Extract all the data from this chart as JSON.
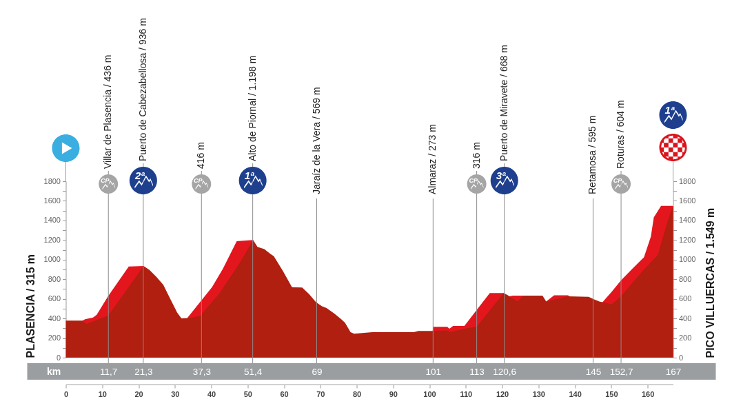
{
  "chart_data": {
    "type": "area",
    "ylabel": "PLASENCIA / 315 m",
    "y2label": "PICO VILLUERCAS / 1.549 m",
    "x2label": "km",
    "xlim": [
      0,
      167
    ],
    "xticks": [
      0,
      10,
      20,
      30,
      40,
      50,
      60,
      70,
      80,
      90,
      100,
      110,
      120,
      130,
      140,
      150,
      160
    ],
    "x2lim": [
      0,
      167
    ],
    "x2ticks": [
      {
        "value": 11.7,
        "label": "11,7"
      },
      {
        "value": 21.3,
        "label": "21,3"
      },
      {
        "value": 37.3,
        "label": "37,3"
      },
      {
        "value": 51.4,
        "label": "51,4"
      },
      69,
      101,
      113,
      {
        "value": 120.6,
        "label": "120,6"
      },
      145,
      {
        "value": 152.7,
        "label": "152,7"
      },
      167
    ],
    "ylim": [
      0,
      1800
    ],
    "yticks": [
      0,
      {
        "value": 100,
        "label": null
      },
      200,
      {
        "value": 300,
        "label": null
      },
      400,
      {
        "value": 500,
        "label": null
      },
      600,
      {
        "value": 700,
        "label": null
      },
      800,
      {
        "value": 900,
        "label": null
      },
      1000,
      {
        "value": 1100,
        "label": null
      },
      1200,
      {
        "value": 1300,
        "label": null
      },
      1400,
      {
        "value": 1500,
        "label": null
      },
      1600,
      {
        "value": 1700,
        "label": null
      },
      1800
    ],
    "y2lim": [
      0,
      1800
    ],
    "y2ticks": [
      0,
      {
        "value": 100,
        "label": null
      },
      200,
      {
        "value": 300,
        "label": null
      },
      400,
      {
        "value": 500,
        "label": null
      },
      600,
      {
        "value": 700,
        "label": null
      },
      800,
      {
        "value": 900,
        "label": null
      },
      1000,
      {
        "value": 1100,
        "label": null
      },
      1200,
      {
        "value": 1300,
        "label": null
      },
      1400,
      {
        "value": 1500,
        "label": null
      },
      1600,
      {
        "value": 1700,
        "label": null
      },
      1800
    ],
    "series": [
      {
        "color": "#e3161e",
        "x": [
          4.6,
          5.3,
          7.5,
          8.5,
          11.6,
          17.3,
          21.4,
          27,
          31.8,
          33.4,
          35.6,
          40.2,
          43.2,
          47,
          51.5,
          80,
          100.9,
          101,
          104.9,
          105.5,
          106.5,
          109.6,
          113.4,
          116.6,
          120.4,
          122,
          122.9,
          125.8,
          128.5,
          132.1,
          134.3,
          138.1,
          138.7,
          142,
          147.6,
          150.1,
          152.7,
          155.8,
          159,
          160.9,
          161.7,
          163.7,
          167
        ],
        "values": [
          378,
          392,
          410,
          437,
          625,
          930,
          935,
          null,
          401,
          405,
          507,
          719,
          907,
          1189,
          1200,
          null,
          272,
          314,
          314,
          296,
          324,
          324,
          507,
          660,
          660,
          625,
          632,
          632,
          null,
          573,
          637,
          637,
          621,
          null,
          566,
          672,
          790,
          907,
          1025,
          1236,
          1430,
          1549,
          1549
        ]
      },
      {
        "color": "#b01f0f",
        "x": [
          0,
          4.6,
          5,
          5.6,
          11.7,
          21.4,
          23,
          24.9,
          26.8,
          28.7,
          30.6,
          31.8,
          33.4,
          36.9,
          42.1,
          47.8,
          51.5,
          52.7,
          54.6,
          56.2,
          57.2,
          59.7,
          62.2,
          65,
          66.9,
          68.8,
          70.4,
          71.7,
          73.9,
          75.8,
          76.8,
          78.3,
          79.3,
          84.3,
          95.7,
          97,
          100.9,
          104.9,
          105.8,
          109.6,
          113,
          120.4,
          122,
          124.2,
          125.8,
          131.1,
          132.1,
          138.1,
          143.8,
          145.1,
          146.7,
          147.6,
          150.1,
          152.7,
          156.4,
          159.5,
          162.8,
          165.6,
          167
        ],
        "values": [
          378,
          378,
          366,
          343,
          430,
          935,
          895,
          825,
          743,
          602,
          461,
          401,
          401,
          425,
          648,
          965,
          1200,
          1131,
          1107,
          1060,
          1036,
          884,
          719,
          715,
          648,
          566,
          526,
          507,
          448,
          390,
          355,
          260,
          244,
          260,
          260,
          272,
          272,
          278,
          260,
          296,
          316,
          660,
          625,
          573,
          632,
          632,
          573,
          625,
          621,
          597,
          573,
          566,
          543,
          625,
          790,
          919,
          1048,
          1405,
          1549
        ]
      }
    ],
    "ref_lines": [
      {
        "axis": "x",
        "value": 11.7,
        "label": "Villar de Plasencia / 436 m",
        "color": "#8c8c8c"
      },
      {
        "axis": "x",
        "value": 21.3,
        "label": "Puerto de Cabezabellosa / 936 m",
        "color": "#8c8c8c"
      },
      {
        "axis": "x",
        "value": 37.3,
        "label": "416 m",
        "color": "#8c8c8c"
      },
      {
        "axis": "x",
        "value": 51.4,
        "label": "Alto de Piornal / 1.198 m",
        "color": "#8c8c8c"
      },
      {
        "axis": "x",
        "value": 69,
        "label": "Jaraíz de la Vera / 569 m",
        "color": "#8c8c8c"
      },
      {
        "axis": "x",
        "value": 101,
        "label": "Almaraz / 273 m",
        "color": "#8c8c8c"
      },
      {
        "axis": "x",
        "value": 113,
        "label": "316 m",
        "color": "#8c8c8c"
      },
      {
        "axis": "x",
        "value": 120.6,
        "label": "Puerto de Miravete / 668 m",
        "color": "#8c8c8c"
      },
      {
        "axis": "x",
        "value": 145,
        "label": "Retamosa / 595 m",
        "color": "#8c8c8c"
      },
      {
        "axis": "x",
        "value": 152.7,
        "label": "Roturas / 604 m",
        "color": "#8c8c8c"
      }
    ],
    "annotations": [
      "CP",
      "2ª",
      "CP",
      "1ª",
      "CP",
      "3ª",
      "CP",
      "1ª"
    ]
  }
}
